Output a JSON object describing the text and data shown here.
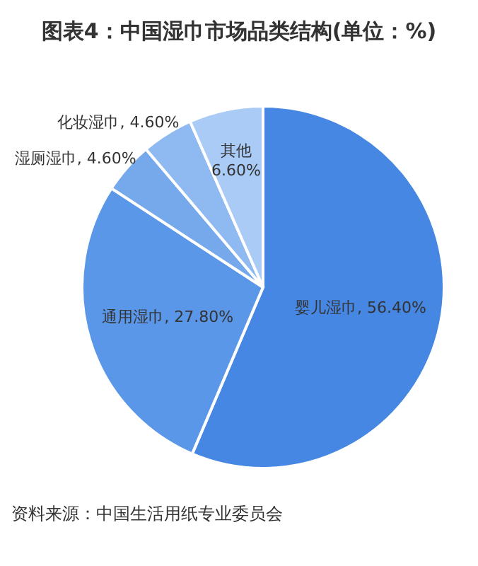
{
  "chart_data": {
    "type": "pie",
    "title": "图表4：中国湿巾市场品类结构(单位：%)",
    "categories": [
      "婴儿湿巾",
      "通用湿巾",
      "湿厕湿巾",
      "化妆湿巾",
      "其他"
    ],
    "values": [
      56.4,
      27.8,
      4.6,
      4.6,
      6.6
    ],
    "value_labels": [
      "56.40%",
      "27.80%",
      "4.60%",
      "4.60%",
      "6.60%"
    ],
    "colors": [
      "#4587e2",
      "#5b97e8",
      "#76a8ec",
      "#8fb9f1",
      "#a9cbf6"
    ],
    "annotations": [
      "资料来源：中国生活用纸专业委员会"
    ]
  }
}
